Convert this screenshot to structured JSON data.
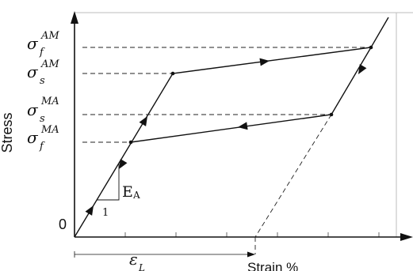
{
  "axes": {
    "y_label": "Stress",
    "x_label": "Strain %",
    "origin": "0"
  },
  "stress_levels": [
    {
      "id": "sigma_f_AM",
      "base": "σ",
      "sub": "f",
      "sup": "AM"
    },
    {
      "id": "sigma_s_AM",
      "base": "σ",
      "sub": "s",
      "sup": "AM"
    },
    {
      "id": "sigma_s_MA",
      "base": "σ",
      "sub": "s",
      "sup": "MA"
    },
    {
      "id": "sigma_f_MA",
      "base": "σ",
      "sub": "f",
      "sup": "MA"
    }
  ],
  "modulus": {
    "label_main": "E",
    "label_sub": "A",
    "slope_run": "1"
  },
  "strain_annotation": {
    "base": "ε",
    "sub": "L"
  }
}
